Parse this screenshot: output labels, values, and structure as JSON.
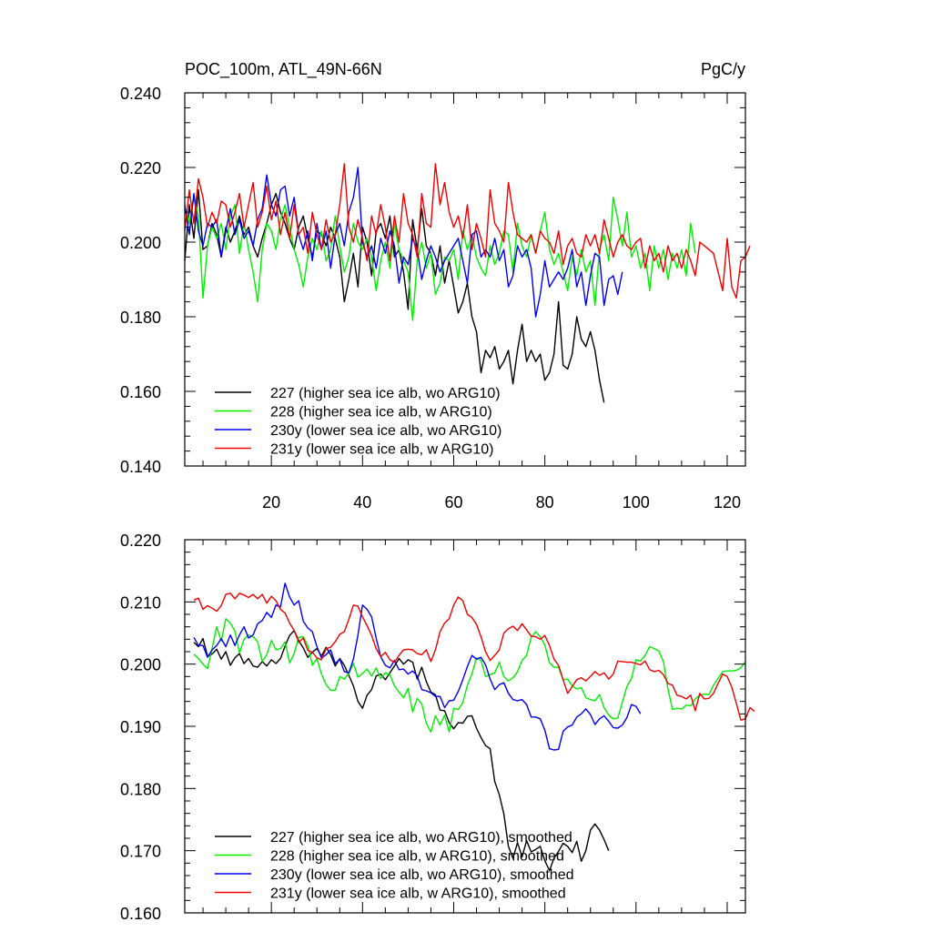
{
  "header": {
    "title": "POC_100m, ATL_49N-66N",
    "units": "PgC/y"
  },
  "chart_data": [
    {
      "type": "line",
      "title": "POC_100m, ATL_49N-66N",
      "units": "PgC/y",
      "xlim": [
        1,
        124
      ],
      "ylim": [
        0.14,
        0.24
      ],
      "yticks": [
        "0.140",
        "0.160",
        "0.180",
        "0.200",
        "0.220",
        "0.240"
      ],
      "xticks": [
        "20",
        "40",
        "60",
        "80",
        "100",
        "120"
      ],
      "legend_position": "bottom-left",
      "series": [
        {
          "name": "227",
          "label": "227 (higher sea ice alb, wo ARG10)",
          "color": "#000000",
          "x_start": 1,
          "values": [
            0.195,
            0.21,
            0.201,
            0.214,
            0.198,
            0.199,
            0.205,
            0.202,
            0.196,
            0.204,
            0.2,
            0.203,
            0.207,
            0.202,
            0.204,
            0.199,
            0.196,
            0.201,
            0.205,
            0.21,
            0.213,
            0.208,
            0.205,
            0.201,
            0.198,
            0.204,
            0.207,
            0.201,
            0.196,
            0.203,
            0.202,
            0.199,
            0.204,
            0.201,
            0.196,
            0.184,
            0.19,
            0.197,
            0.188,
            0.204,
            0.2,
            0.191,
            0.203,
            0.205,
            0.201,
            0.207,
            0.196,
            0.198,
            0.192,
            0.182,
            0.206,
            0.198,
            0.209,
            0.199,
            0.197,
            0.191,
            0.199,
            0.189,
            0.195,
            0.188,
            0.181,
            0.184,
            0.189,
            0.18,
            0.176,
            0.165,
            0.171,
            0.169,
            0.172,
            0.166,
            0.168,
            0.171,
            0.162,
            0.171,
            0.178,
            0.168,
            0.171,
            0.168,
            0.17,
            0.163,
            0.165,
            0.17,
            0.184,
            0.167,
            0.166,
            0.17,
            0.18,
            0.174,
            0.172,
            0.176,
            0.171,
            0.163,
            0.157
          ]
        },
        {
          "name": "228",
          "label": "228 (higher sea ice alb, w ARG10)",
          "color": "#00ee00",
          "x_start": 1,
          "values": [
            0.209,
            0.205,
            0.212,
            0.207,
            0.185,
            0.199,
            0.204,
            0.201,
            0.205,
            0.198,
            0.207,
            0.21,
            0.197,
            0.205,
            0.198,
            0.192,
            0.184,
            0.198,
            0.205,
            0.203,
            0.198,
            0.206,
            0.21,
            0.204,
            0.198,
            0.194,
            0.188,
            0.196,
            0.201,
            0.198,
            0.203,
            0.195,
            0.198,
            0.207,
            0.199,
            0.192,
            0.196,
            0.205,
            0.2,
            0.198,
            0.201,
            0.196,
            0.187,
            0.195,
            0.2,
            0.193,
            0.205,
            0.198,
            0.195,
            0.192,
            0.179,
            0.195,
            0.2,
            0.193,
            0.197,
            0.186,
            0.189,
            0.196,
            0.195,
            0.198,
            0.19,
            0.203,
            0.198,
            0.202,
            0.196,
            0.193,
            0.191,
            0.199,
            0.194,
            0.197,
            0.203,
            0.202,
            0.192,
            0.205,
            0.199,
            0.196,
            0.202,
            0.197,
            0.203,
            0.208,
            0.198,
            0.194,
            0.197,
            0.192,
            0.187,
            0.196,
            0.191,
            0.198,
            0.192,
            0.195,
            0.183,
            0.198,
            0.202,
            0.195,
            0.212,
            0.206,
            0.199,
            0.208,
            0.196,
            0.199,
            0.193,
            0.197,
            0.187,
            0.199,
            0.193,
            0.198,
            0.19,
            0.197,
            0.193,
            0.198,
            0.191,
            0.205,
            0.197
          ]
        },
        {
          "name": "230y",
          "label": "230y (lower sea ice alb, wo ARG10)",
          "color": "#0000ee",
          "x_start": 1,
          "values": [
            0.21,
            0.202,
            0.213,
            0.203,
            0.199,
            0.205,
            0.204,
            0.206,
            0.196,
            0.203,
            0.209,
            0.202,
            0.206,
            0.201,
            0.203,
            0.199,
            0.206,
            0.209,
            0.218,
            0.21,
            0.207,
            0.214,
            0.215,
            0.207,
            0.212,
            0.202,
            0.198,
            0.203,
            0.195,
            0.205,
            0.198,
            0.203,
            0.193,
            0.202,
            0.205,
            0.199,
            0.208,
            0.212,
            0.22,
            0.2,
            0.196,
            0.199,
            0.193,
            0.201,
            0.197,
            0.203,
            0.199,
            0.189,
            0.196,
            0.194,
            0.201,
            0.198,
            0.19,
            0.195,
            0.199,
            0.196,
            0.192,
            0.195,
            0.197,
            0.199,
            0.201,
            0.195,
            0.189,
            0.202,
            0.203,
            0.196,
            0.198,
            0.196,
            0.201,
            0.195,
            0.198,
            0.188,
            0.191,
            0.199,
            0.196,
            0.198,
            0.193,
            0.18,
            0.186,
            0.195,
            0.188,
            0.19,
            0.192,
            0.19,
            0.193,
            0.198,
            0.188,
            0.192,
            0.183,
            0.191,
            0.197,
            0.196,
            0.183,
            0.19,
            0.191,
            0.186,
            0.192
          ]
        },
        {
          "name": "231y",
          "label": "231y (lower sea ice alb, w ARG10)",
          "color": "#ee0000",
          "x_start": 1,
          "values": [
            0.203,
            0.214,
            0.205,
            0.217,
            0.212,
            0.204,
            0.208,
            0.205,
            0.211,
            0.21,
            0.204,
            0.208,
            0.213,
            0.204,
            0.21,
            0.216,
            0.204,
            0.208,
            0.215,
            0.206,
            0.211,
            0.202,
            0.208,
            0.201,
            0.21,
            0.202,
            0.204,
            0.197,
            0.208,
            0.202,
            0.198,
            0.206,
            0.2,
            0.202,
            0.21,
            0.221,
            0.204,
            0.2,
            0.206,
            0.201,
            0.195,
            0.207,
            0.202,
            0.21,
            0.204,
            0.195,
            0.207,
            0.2,
            0.213,
            0.205,
            0.202,
            0.196,
            0.213,
            0.205,
            0.204,
            0.221,
            0.21,
            0.216,
            0.208,
            0.204,
            0.207,
            0.201,
            0.21,
            0.198,
            0.205,
            0.201,
            0.196,
            0.214,
            0.205,
            0.203,
            0.2,
            0.216,
            0.208,
            0.202,
            0.201,
            0.2,
            0.202,
            0.197,
            0.203,
            0.201,
            0.2,
            0.197,
            0.203,
            0.194,
            0.199,
            0.201,
            0.197,
            0.196,
            0.202,
            0.199,
            0.202,
            0.197,
            0.206,
            0.201,
            0.196,
            0.2,
            0.202,
            0.199,
            0.198,
            0.2,
            0.201,
            0.193,
            0.199,
            0.195,
            0.197,
            0.192,
            0.199,
            0.195,
            0.197,
            0.193,
            0.198,
            0.195,
            0.191,
            0.2,
            0.199,
            0.198,
            0.197,
            0.192,
            0.187,
            0.201,
            0.188,
            0.185,
            0.195,
            0.196,
            0.199
          ]
        }
      ]
    },
    {
      "type": "line",
      "title": "",
      "xlim": [
        1,
        124
      ],
      "ylim": [
        0.16,
        0.22
      ],
      "yticks": [
        "0.160",
        "0.170",
        "0.180",
        "0.190",
        "0.200",
        "0.210",
        "0.220"
      ],
      "xticks": [],
      "legend_position": "bottom-left",
      "series": [
        {
          "name": "227 smoothed",
          "label": "227 (higher sea ice alb, wo ARG10), smoothed",
          "color": "#000000",
          "x_start": 3,
          "values": [
            0.2035,
            0.2028,
            0.2041,
            0.2013,
            0.2016,
            0.2024,
            0.2008,
            0.202,
            0.1998,
            0.201,
            0.2017,
            0.2001,
            0.2009,
            0.1997,
            0.1995,
            0.2004,
            0.1997,
            0.2007,
            0.2001,
            0.2009,
            0.2029,
            0.2046,
            0.2054,
            0.2038,
            0.2026,
            0.2011,
            0.2019,
            0.2025,
            0.2013,
            0.2027,
            0.2015,
            0.1997,
            0.2009,
            0.1998,
            0.1982,
            0.1965,
            0.194,
            0.1929,
            0.195,
            0.1959,
            0.1981,
            0.1984,
            0.1975,
            0.1986,
            0.1997,
            0.2009,
            0.2,
            0.2007,
            0.2003,
            0.1976,
            0.1995,
            0.1972,
            0.1955,
            0.1951,
            0.1926,
            0.1925,
            0.1906,
            0.1896,
            0.1906,
            0.1905,
            0.1916,
            0.1917,
            0.1897,
            0.1882,
            0.1869,
            0.1864,
            0.1811,
            0.179,
            0.1759,
            0.1707,
            0.1688,
            0.1713,
            0.169,
            0.1716,
            0.1698,
            0.1702,
            0.1707,
            0.1684,
            0.1668,
            0.1688,
            0.1699,
            0.1712,
            0.1707,
            0.1697,
            0.1715,
            0.1683,
            0.17,
            0.1733,
            0.1743,
            0.1733,
            0.1718,
            0.17
          ]
        },
        {
          "name": "228 smoothed",
          "label": "228 (higher sea ice alb, w ARG10), smoothed",
          "color": "#00ee00",
          "x_start": 3,
          "values": [
            0.2016,
            0.2009,
            0.2,
            0.1993,
            0.2025,
            0.206,
            0.2037,
            0.2073,
            0.2066,
            0.2053,
            0.2018,
            0.204,
            0.2047,
            0.2044,
            0.2036,
            0.2004,
            0.2015,
            0.2038,
            0.2023,
            0.2025,
            0.2036,
            0.2002,
            0.2017,
            0.2043,
            0.2044,
            0.203,
            0.1998,
            0.2009,
            0.1984,
            0.1967,
            0.1958,
            0.1958,
            0.198,
            0.1976,
            0.1985,
            0.2001,
            0.1979,
            0.1985,
            0.1992,
            0.1981,
            0.1994,
            0.1977,
            0.1986,
            0.1983,
            0.1965,
            0.1955,
            0.1946,
            0.1961,
            0.1923,
            0.1945,
            0.1936,
            0.1905,
            0.1891,
            0.1917,
            0.1902,
            0.1918,
            0.1891,
            0.1929,
            0.1927,
            0.1938,
            0.1966,
            0.1984,
            0.201,
            0.2006,
            0.198,
            0.1983,
            0.1986,
            0.2003,
            0.198,
            0.1973,
            0.1978,
            0.1988,
            0.2006,
            0.2014,
            0.2043,
            0.2052,
            0.2044,
            0.2031,
            0.2002,
            0.1995,
            0.1995,
            0.1975,
            0.1976,
            0.1965,
            0.196,
            0.1962,
            0.1946,
            0.1943,
            0.1941,
            0.1951,
            0.193,
            0.1918,
            0.1912,
            0.1913,
            0.1939,
            0.1964,
            0.1977,
            0.2007,
            0.2005,
            0.2014,
            0.2028,
            0.2025,
            0.2021,
            0.2004,
            0.196,
            0.1927,
            0.1929,
            0.1928,
            0.1934,
            0.1933,
            0.1944,
            0.195,
            0.1952,
            0.1951,
            0.1966,
            0.1977,
            0.1988,
            0.1989,
            0.1989,
            0.199,
            0.1994,
            0.2004
          ]
        },
        {
          "name": "230y smoothed",
          "label": "230y (lower sea ice alb, wo ARG10), smoothed",
          "color": "#0000ee",
          "x_start": 3,
          "values": [
            0.2043,
            0.203,
            0.203,
            0.2011,
            0.2023,
            0.203,
            0.2041,
            0.2028,
            0.2047,
            0.203,
            0.2047,
            0.206,
            0.2042,
            0.2047,
            0.2065,
            0.207,
            0.2083,
            0.2075,
            0.2095,
            0.2092,
            0.213,
            0.2108,
            0.2095,
            0.2102,
            0.2069,
            0.2058,
            0.2052,
            0.2028,
            0.201,
            0.2015,
            0.2023,
            0.2001,
            0.2008,
            0.1988,
            0.1986,
            0.2008,
            0.2047,
            0.2095,
            0.2088,
            0.2076,
            0.2042,
            0.2012,
            0.1998,
            0.1994,
            0.2006,
            0.1991,
            0.1992,
            0.1984,
            0.1989,
            0.1981,
            0.1959,
            0.1957,
            0.1954,
            0.1948,
            0.1948,
            0.193,
            0.1941,
            0.1942,
            0.1956,
            0.1975,
            0.1996,
            0.2014,
            0.2008,
            0.2011,
            0.1999,
            0.1976,
            0.1959,
            0.1967,
            0.197,
            0.1953,
            0.1943,
            0.1941,
            0.1943,
            0.1935,
            0.1915,
            0.1915,
            0.1912,
            0.1894,
            0.1864,
            0.1862,
            0.1863,
            0.1892,
            0.1899,
            0.1902,
            0.1915,
            0.192,
            0.1928,
            0.1919,
            0.1903,
            0.1912,
            0.1917,
            0.1908,
            0.1898,
            0.1897,
            0.1902,
            0.1914,
            0.1935,
            0.1932,
            0.192
          ]
        },
        {
          "name": "231y smoothed",
          "label": "231y (lower sea ice alb, w ARG10), smoothed",
          "color": "#ee0000",
          "x_start": 3,
          "values": [
            0.2103,
            0.2106,
            0.2088,
            0.2094,
            0.209,
            0.2085,
            0.2094,
            0.2112,
            0.2114,
            0.2105,
            0.2114,
            0.2111,
            0.2107,
            0.2112,
            0.2105,
            0.2112,
            0.2098,
            0.2109,
            0.2102,
            0.2088,
            0.2082,
            0.2066,
            0.2054,
            0.2035,
            0.2042,
            0.2022,
            0.2019,
            0.201,
            0.2007,
            0.2025,
            0.2027,
            0.2036,
            0.2048,
            0.2052,
            0.2072,
            0.2095,
            0.2093,
            0.2076,
            0.2062,
            0.2046,
            0.2025,
            0.2012,
            0.2019,
            0.2007,
            0.2003,
            0.2014,
            0.2023,
            0.2024,
            0.2023,
            0.2017,
            0.2015,
            0.2023,
            0.2004,
            0.2023,
            0.2052,
            0.2066,
            0.2073,
            0.2095,
            0.2108,
            0.2102,
            0.208,
            0.2075,
            0.2064,
            0.2044,
            0.202,
            0.2006,
            0.2014,
            0.2023,
            0.205,
            0.2057,
            0.2061,
            0.2054,
            0.2065,
            0.2055,
            0.2045,
            0.2044,
            0.204,
            0.2046,
            0.203,
            0.2008,
            0.1998,
            0.1975,
            0.1953,
            0.1964,
            0.1975,
            0.1978,
            0.1973,
            0.198,
            0.1988,
            0.1982,
            0.1986,
            0.1976,
            0.1984,
            0.2005,
            0.2004,
            0.2003,
            0.2003,
            0.2001,
            0.1999,
            0.2005,
            0.1991,
            0.1988,
            0.199,
            0.1983,
            0.1969,
            0.1966,
            0.195,
            0.1948,
            0.1944,
            0.195,
            0.1925,
            0.1953,
            0.1944,
            0.1945,
            0.1953,
            0.1969,
            0.1984,
            0.198,
            0.1963,
            0.1937,
            0.191,
            0.1912,
            0.193,
            0.1924
          ]
        }
      ]
    }
  ]
}
